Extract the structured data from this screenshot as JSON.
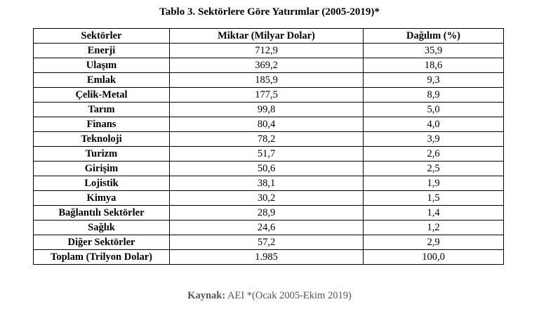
{
  "title": "Tablo 3. Sektörlere Göre Yatırımlar (2005-2019)*",
  "table": {
    "headers": [
      "Sektörler",
      "Miktar (Milyar Dolar)",
      "Dağılım (%)"
    ],
    "rows": [
      [
        "Enerji",
        "712,9",
        "35,9"
      ],
      [
        "Ulaşım",
        "369,2",
        "18,6"
      ],
      [
        "Emlak",
        "185,9",
        "9,3"
      ],
      [
        "Çelik-Metal",
        "177,5",
        "8,9"
      ],
      [
        "Tarım",
        "99,8",
        "5,0"
      ],
      [
        "Finans",
        "80,4",
        "4,0"
      ],
      [
        "Teknoloji",
        "78,2",
        "3,9"
      ],
      [
        "Turizm",
        "51,7",
        "2,6"
      ],
      [
        "Girişim",
        "50,6",
        "2,5"
      ],
      [
        "Lojistik",
        "38,1",
        "1,9"
      ],
      [
        "Kimya",
        "30,2",
        "1,5"
      ],
      [
        "Bağlantılı Sektörler",
        "28,9",
        "1,4"
      ],
      [
        "Sağlık",
        "24,6",
        "1,2"
      ],
      [
        "Diğer Sektörler",
        "57,2",
        "2,9"
      ],
      [
        "Toplam (Trilyon Dolar)",
        "1.985",
        "100,0"
      ]
    ]
  },
  "source": {
    "label": "Kaynak:",
    "text": "AEI *(Ocak 2005-Ekim 2019)"
  }
}
